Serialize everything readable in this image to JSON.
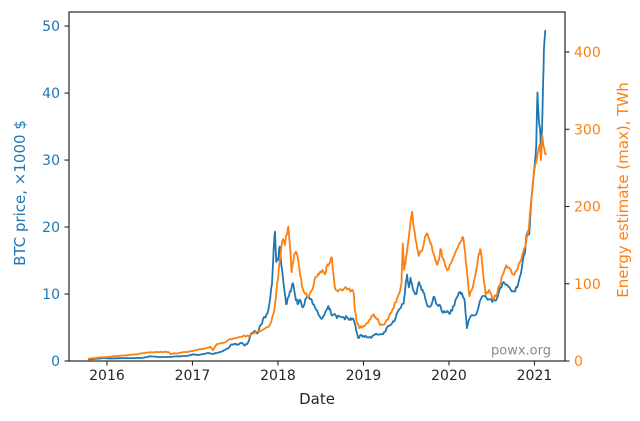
{
  "figure": {
    "background": "#ffffff"
  },
  "chart_data": {
    "type": "line",
    "title": "",
    "xlabel": "Date",
    "ylabel_left": "BTC price, ×1000 $",
    "ylabel_right": "Energy estimate (max), TWh",
    "watermark": "powx.org",
    "grid": false,
    "legend_position": "none",
    "spine_color": "#262626",
    "tick_label_color_x": "#262626",
    "x_ticks": [
      2016,
      2017,
      2018,
      2019,
      2020,
      2021
    ],
    "xlim": [
      2015.556,
      2021.357
    ],
    "left_axis": {
      "ticks": [
        0,
        10,
        20,
        30,
        40,
        50
      ],
      "lim": [
        0,
        52.1
      ],
      "color": "#1f77b4"
    },
    "right_axis": {
      "ticks": [
        0,
        100,
        200,
        300,
        400
      ],
      "lim": [
        0,
        451.8
      ],
      "color": "#ff7f0e"
    },
    "series": [
      {
        "name": "BTC price, ×1000 $",
        "axis": "left",
        "color": "#1f77b4",
        "x": [
          2015.79,
          2015.85,
          2015.92,
          2015.96,
          2016.0,
          2016.04,
          2016.1,
          2016.17,
          2016.25,
          2016.33,
          2016.42,
          2016.46,
          2016.5,
          2016.54,
          2016.6,
          2016.67,
          2016.75,
          2016.83,
          2016.92,
          2016.98,
          2017.02,
          2017.06,
          2017.12,
          2017.19,
          2017.25,
          2017.31,
          2017.37,
          2017.42,
          2017.46,
          2017.5,
          2017.53,
          2017.57,
          2017.61,
          2017.65,
          2017.69,
          2017.73,
          2017.76,
          2017.8,
          2017.84,
          2017.88,
          2017.91,
          2017.93,
          2017.95,
          2017.965,
          2017.98,
          2018.0,
          2018.02,
          2018.04,
          2018.07,
          2018.095,
          2018.12,
          2018.15,
          2018.175,
          2018.2,
          2018.23,
          2018.26,
          2018.29,
          2018.32,
          2018.35,
          2018.38,
          2018.42,
          2018.46,
          2018.5,
          2018.53,
          2018.56,
          2018.59,
          2018.62,
          2018.65,
          2018.69,
          2018.73,
          2018.77,
          2018.81,
          2018.85,
          2018.88,
          2018.9,
          2018.92,
          2018.94,
          2018.97,
          2019.0,
          2019.04,
          2019.09,
          2019.13,
          2019.18,
          2019.23,
          2019.27,
          2019.32,
          2019.36,
          2019.4,
          2019.44,
          2019.47,
          2019.49,
          2019.51,
          2019.53,
          2019.55,
          2019.58,
          2019.62,
          2019.65,
          2019.68,
          2019.71,
          2019.74,
          2019.78,
          2019.82,
          2019.85,
          2019.89,
          2019.93,
          2019.97,
          2020.01,
          2020.05,
          2020.09,
          2020.13,
          2020.16,
          2020.185,
          2020.21,
          2020.24,
          2020.28,
          2020.32,
          2020.36,
          2020.4,
          2020.44,
          2020.48,
          2020.52,
          2020.56,
          2020.6,
          2020.64,
          2020.68,
          2020.72,
          2020.76,
          2020.8,
          2020.84,
          2020.87,
          2020.89,
          2020.905,
          2020.92,
          2020.94,
          2020.96,
          2020.98,
          2021.0,
          2021.02,
          2021.035,
          2021.05,
          2021.065,
          2021.08,
          2021.095,
          2021.11,
          2021.125
        ],
        "values": [
          0.25,
          0.31,
          0.38,
          0.43,
          0.43,
          0.37,
          0.4,
          0.42,
          0.42,
          0.44,
          0.46,
          0.58,
          0.7,
          0.67,
          0.6,
          0.59,
          0.61,
          0.7,
          0.74,
          0.92,
          0.98,
          0.89,
          1.02,
          1.2,
          1.08,
          1.28,
          1.6,
          1.9,
          2.5,
          2.6,
          2.4,
          2.7,
          2.3,
          2.75,
          4.2,
          4.5,
          4.1,
          5.4,
          6.6,
          7.2,
          9.5,
          11.5,
          16.8,
          19.3,
          14.8,
          15.1,
          17.1,
          14.3,
          11.0,
          8.5,
          9.5,
          10.4,
          11.6,
          9.8,
          8.5,
          9.1,
          8.0,
          9.2,
          9.6,
          9.3,
          8.4,
          7.5,
          6.4,
          6.7,
          7.5,
          8.2,
          7.1,
          6.9,
          6.4,
          6.6,
          6.5,
          6.45,
          6.4,
          6.35,
          5.5,
          4.3,
          3.4,
          3.9,
          3.75,
          3.55,
          3.45,
          3.9,
          3.95,
          4.0,
          4.9,
          5.4,
          5.9,
          7.3,
          8.0,
          8.6,
          11.0,
          12.9,
          11.0,
          12.4,
          10.6,
          10.0,
          11.8,
          10.6,
          10.1,
          8.5,
          8.1,
          9.6,
          8.6,
          8.4,
          7.2,
          7.3,
          7.0,
          8.2,
          9.4,
          10.3,
          9.7,
          8.8,
          4.9,
          6.3,
          6.8,
          7.0,
          8.9,
          9.7,
          9.4,
          9.2,
          9.1,
          9.3,
          11.0,
          11.8,
          11.4,
          10.7,
          10.4,
          11.0,
          13.0,
          15.5,
          16.3,
          18.7,
          19.2,
          19.0,
          23.5,
          26.5,
          29.0,
          32.0,
          40.1,
          36.0,
          34.8,
          31.0,
          38.0,
          46.5,
          49.3
        ]
      },
      {
        "name": "Energy estimate (max), TWh",
        "axis": "right",
        "color": "#ff7f0e",
        "x": [
          2015.79,
          2015.88,
          2015.96,
          2016.04,
          2016.12,
          2016.21,
          2016.29,
          2016.37,
          2016.44,
          2016.5,
          2016.56,
          2016.62,
          2016.68,
          2016.72,
          2016.74,
          2016.8,
          2016.86,
          2016.92,
          2016.98,
          2017.04,
          2017.1,
          2017.16,
          2017.21,
          2017.24,
          2017.27,
          2017.33,
          2017.4,
          2017.46,
          2017.52,
          2017.58,
          2017.64,
          2017.7,
          2017.76,
          2017.82,
          2017.88,
          2017.92,
          2017.95,
          2017.98,
          2018.01,
          2018.04,
          2018.06,
          2018.08,
          2018.1,
          2018.12,
          2018.14,
          2018.16,
          2018.19,
          2018.22,
          2018.25,
          2018.28,
          2018.31,
          2018.34,
          2018.37,
          2018.4,
          2018.43,
          2018.46,
          2018.49,
          2018.52,
          2018.55,
          2018.58,
          2018.61,
          2018.63,
          2018.65,
          2018.67,
          2018.7,
          2018.74,
          2018.78,
          2018.82,
          2018.86,
          2018.885,
          2018.9,
          2018.93,
          2018.96,
          2019.0,
          2019.04,
          2019.08,
          2019.11,
          2019.14,
          2019.18,
          2019.22,
          2019.26,
          2019.3,
          2019.34,
          2019.38,
          2019.42,
          2019.445,
          2019.46,
          2019.475,
          2019.5,
          2019.53,
          2019.555,
          2019.57,
          2019.59,
          2019.62,
          2019.645,
          2019.68,
          2019.71,
          2019.74,
          2019.77,
          2019.8,
          2019.83,
          2019.855,
          2019.88,
          2019.9,
          2019.93,
          2019.96,
          2019.99,
          2020.02,
          2020.06,
          2020.1,
          2020.14,
          2020.165,
          2020.19,
          2020.215,
          2020.24,
          2020.28,
          2020.32,
          2020.355,
          2020.37,
          2020.4,
          2020.43,
          2020.47,
          2020.51,
          2020.55,
          2020.59,
          2020.63,
          2020.67,
          2020.71,
          2020.75,
          2020.79,
          2020.83,
          2020.87,
          2020.9,
          2020.93,
          2020.96,
          2020.99,
          2021.02,
          2021.045,
          2021.06,
          2021.075,
          2021.09,
          2021.105,
          2021.12,
          2021.135
        ],
        "values": [
          3.2,
          4.0,
          4.8,
          5.5,
          6.3,
          7.2,
          8.1,
          9.2,
          10.3,
          11.0,
          11.3,
          11.7,
          11.9,
          11.5,
          9.2,
          9.8,
          10.6,
          11.6,
          12.8,
          14.0,
          15.3,
          17.0,
          18.5,
          14.0,
          20.0,
          23.0,
          25.5,
          28.0,
          30.0,
          31.5,
          33.0,
          35.5,
          38.0,
          40.5,
          44.0,
          50.0,
          62.0,
          88.0,
          118,
          148,
          158,
          150,
          163,
          174,
          150,
          115,
          138,
          140,
          120,
          97,
          88,
          84,
          86,
          92,
          106,
          110,
          115,
          118,
          112,
          125,
          128,
          134,
          112,
          93,
          90,
          93,
          95,
          93,
          91,
          88,
          65,
          48,
          43,
          45,
          49,
          54,
          60,
          57,
          50,
          47,
          51,
          58,
          67,
          76,
          88,
          100,
          152,
          118,
          135,
          160,
          185,
          193,
          172,
          152,
          136,
          142,
          155,
          165,
          158,
          148,
          136,
          126,
          130,
          145,
          133,
          122,
          118,
          126,
          136,
          146,
          155,
          160,
          140,
          110,
          84,
          96,
          118,
          140,
          144,
          112,
          86,
          92,
          80,
          84,
          98,
          112,
          124,
          120,
          112,
          117,
          128,
          142,
          152,
          168,
          205,
          240,
          258,
          272,
          280,
          260,
          292,
          278,
          272,
          268
        ]
      }
    ]
  }
}
